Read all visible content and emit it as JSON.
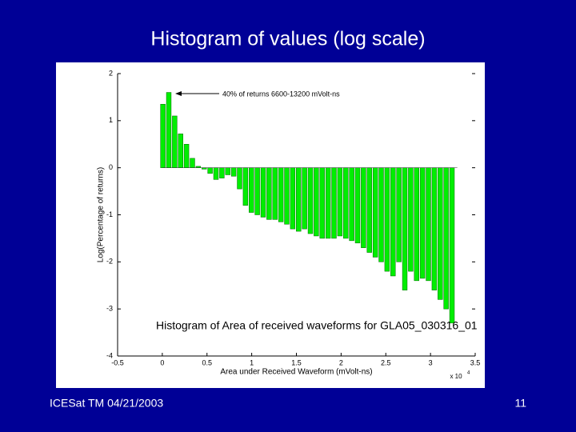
{
  "slide": {
    "title": "Histogram of values (log scale)",
    "footer": "ICESat TM 04/21/2003",
    "page_number": "11"
  },
  "chart_data": {
    "type": "histogram",
    "title": "Histogram of Area of received waveforms for GLA05_030316_01",
    "xlabel": "Area under Received Waveform (mVolt-ns)",
    "ylabel": "Log(Percentage of returns)",
    "x_scale_label": "x 10",
    "x_scale_exponent": "4",
    "annotation": "40% of returns 6600-13200 mVolt-ns",
    "color": "#00ee00",
    "bins": [
      0,
      0.066,
      0.132,
      0.198,
      0.264,
      0.33,
      0.396,
      0.462,
      0.528,
      0.594,
      0.66,
      0.726,
      0.792,
      0.858,
      0.924,
      0.99,
      1.056,
      1.122,
      1.188,
      1.254,
      1.32,
      1.386,
      1.452,
      1.518,
      1.584,
      1.65,
      1.716,
      1.782,
      1.848,
      1.914,
      1.98,
      2.046,
      2.112,
      2.178,
      2.244,
      2.31,
      2.376,
      2.442,
      2.508,
      2.574,
      2.64,
      2.706,
      2.772,
      2.838,
      2.904,
      2.97,
      3.036,
      3.102,
      3.168,
      3.234,
      3.3
    ],
    "values": [
      1.35,
      1.6,
      1.1,
      0.72,
      0.5,
      0.2,
      0.03,
      -0.03,
      -0.12,
      -0.25,
      -0.22,
      -0.15,
      -0.18,
      -0.45,
      -0.8,
      -0.95,
      -1.0,
      -1.05,
      -1.1,
      -1.1,
      -1.15,
      -1.2,
      -1.3,
      -1.35,
      -1.3,
      -1.4,
      -1.45,
      -1.5,
      -1.5,
      -1.5,
      -1.45,
      -1.5,
      -1.55,
      -1.6,
      -1.7,
      -1.8,
      -1.9,
      -2.0,
      -2.2,
      -2.3,
      -2.0,
      -2.6,
      -2.2,
      -2.4,
      -2.35,
      -2.4,
      -2.6,
      -2.8,
      -3.0,
      -3.3
    ],
    "xlim": [
      -0.5,
      3.5
    ],
    "xticks": [
      -0.5,
      0,
      0.5,
      1,
      1.5,
      2,
      2.5,
      3,
      3.5
    ],
    "ylim": [
      -4,
      2
    ],
    "yticks": [
      -4,
      -3,
      -2,
      -1,
      0,
      1,
      2
    ]
  }
}
